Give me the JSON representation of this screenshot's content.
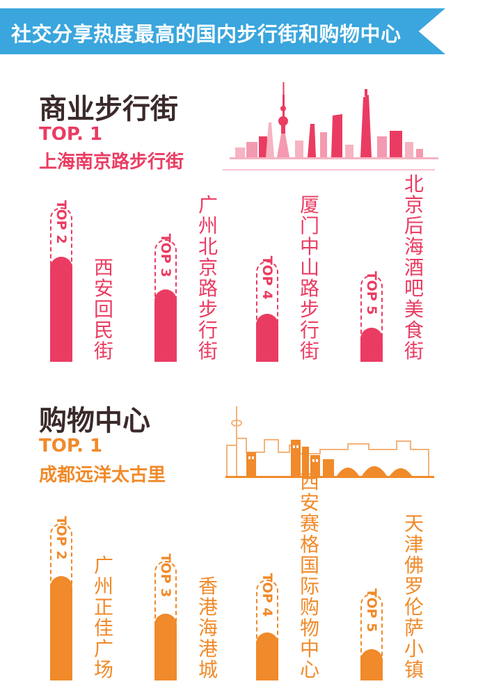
{
  "header": {
    "title": "社交分享热度最高的国内步行街和购物中心"
  },
  "colors": {
    "banner": "#3aa6dd",
    "pink": "#ea3c62",
    "orange": "#f08a2a",
    "title_dark": "#3b2a2a"
  },
  "sections": [
    {
      "title": "商业步行街",
      "top1_label": "TOP. 1",
      "top1_name": "上海南京路步行街",
      "skyline_icon": "shanghai-skyline-icon",
      "items": [
        {
          "rank": "TOP 2",
          "name": "西安回民街",
          "level": 0.68
        },
        {
          "rank": "TOP 3",
          "name": "广州北京路步行街",
          "level": 0.47
        },
        {
          "rank": "TOP 4",
          "name": "厦门中山路步行街",
          "level": 0.31
        },
        {
          "rank": "TOP 5",
          "name": "北京后海酒吧美食街",
          "level": 0.22
        }
      ]
    },
    {
      "title": "购物中心",
      "top1_label": "TOP. 1",
      "top1_name": "成都远洋太古里",
      "skyline_icon": "chengdu-skyline-icon",
      "items": [
        {
          "rank": "TOP 2",
          "name": "广州正佳广场",
          "level": 0.66
        },
        {
          "rank": "TOP 3",
          "name": "香港海港城",
          "level": 0.44
        },
        {
          "rank": "TOP 4",
          "name": "西安赛格国际购物中心",
          "level": 0.31
        },
        {
          "rank": "TOP 5",
          "name": "天津佛罗伦萨小镇",
          "level": 0.2
        }
      ]
    }
  ]
}
